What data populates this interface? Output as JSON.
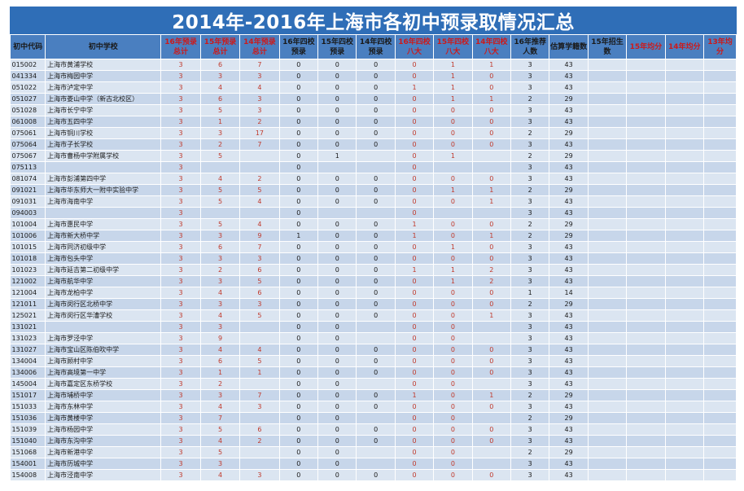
{
  "title": "2014年-2016年上海市各初中预录取情况汇总",
  "headers": [
    {
      "text": "初中代码",
      "red": false
    },
    {
      "text": "初中学校",
      "red": false
    },
    {
      "text": "16年预录总计",
      "red": true
    },
    {
      "text": "15年预录总计",
      "red": true
    },
    {
      "text": "14年预录总计",
      "red": true
    },
    {
      "text": "16年四校预录",
      "red": false
    },
    {
      "text": "15年四校预录",
      "red": false
    },
    {
      "text": "14年四校预录",
      "red": false
    },
    {
      "text": "16年四校八大",
      "red": true
    },
    {
      "text": "15年四校八大",
      "red": true
    },
    {
      "text": "14年四校八大",
      "red": true
    },
    {
      "text": "16年推荐人数",
      "red": false
    },
    {
      "text": "估算学籍数",
      "red": false
    },
    {
      "text": "15年招生数",
      "red": false
    },
    {
      "text": "15年均分",
      "red": true
    },
    {
      "text": "14年均分",
      "red": true
    },
    {
      "text": "13年均分",
      "red": true
    }
  ],
  "rows": [
    [
      "015002",
      "上海市黄浦学校",
      "3",
      "6",
      "7",
      "0",
      "0",
      "0",
      "0",
      "1",
      "1",
      "3",
      "43",
      "",
      "",
      "",
      ""
    ],
    [
      "041334",
      "上海市梅园中学",
      "3",
      "3",
      "3",
      "0",
      "0",
      "0",
      "0",
      "1",
      "0",
      "3",
      "43",
      "",
      "",
      "",
      ""
    ],
    [
      "051022",
      "上海市泸定中学",
      "3",
      "4",
      "4",
      "0",
      "0",
      "0",
      "1",
      "1",
      "0",
      "3",
      "43",
      "",
      "",
      "",
      ""
    ],
    [
      "051027",
      "上海市娄山中学（新古北校区）",
      "3",
      "6",
      "3",
      "0",
      "0",
      "0",
      "0",
      "1",
      "1",
      "2",
      "29",
      "",
      "",
      "",
      ""
    ],
    [
      "051028",
      "上海市长宁中学",
      "3",
      "5",
      "3",
      "0",
      "0",
      "0",
      "0",
      "0",
      "0",
      "3",
      "43",
      "",
      "",
      "",
      ""
    ],
    [
      "061008",
      "上海市五四中学",
      "3",
      "1",
      "2",
      "0",
      "0",
      "0",
      "0",
      "0",
      "0",
      "3",
      "43",
      "",
      "",
      "",
      ""
    ],
    [
      "075061",
      "上海市铜川学校",
      "3",
      "3",
      "17",
      "0",
      "0",
      "0",
      "0",
      "0",
      "0",
      "2",
      "29",
      "",
      "",
      "",
      ""
    ],
    [
      "075064",
      "上海市子长学校",
      "3",
      "2",
      "7",
      "0",
      "0",
      "0",
      "0",
      "0",
      "0",
      "3",
      "43",
      "",
      "",
      "",
      ""
    ],
    [
      "075067",
      "上海市曹杨中学附属学校",
      "3",
      "5",
      "",
      "0",
      "1",
      "",
      "0",
      "1",
      "",
      "2",
      "29",
      "",
      "",
      "",
      ""
    ],
    [
      "075113",
      "",
      "3",
      "",
      "",
      "0",
      "",
      "",
      "0",
      "",
      "",
      "3",
      "43",
      "",
      "",
      "",
      ""
    ],
    [
      "081074",
      "上海市彭浦第四中学",
      "3",
      "4",
      "2",
      "0",
      "0",
      "0",
      "0",
      "0",
      "0",
      "3",
      "43",
      "",
      "",
      "",
      ""
    ],
    [
      "091021",
      "上海市华东师大一附中实验中学",
      "3",
      "5",
      "5",
      "0",
      "0",
      "0",
      "0",
      "1",
      "1",
      "2",
      "29",
      "",
      "",
      "",
      ""
    ],
    [
      "091031",
      "上海市海南中学",
      "3",
      "5",
      "4",
      "0",
      "0",
      "0",
      "0",
      "0",
      "1",
      "3",
      "43",
      "",
      "",
      "",
      ""
    ],
    [
      "094003",
      "",
      "3",
      "",
      "",
      "0",
      "",
      "",
      "0",
      "",
      "",
      "3",
      "43",
      "",
      "",
      "",
      ""
    ],
    [
      "101004",
      "上海市惠民中学",
      "3",
      "5",
      "4",
      "0",
      "0",
      "0",
      "1",
      "0",
      "0",
      "2",
      "29",
      "",
      "",
      "",
      ""
    ],
    [
      "101006",
      "上海市新大桥中学",
      "3",
      "3",
      "9",
      "1",
      "0",
      "0",
      "1",
      "0",
      "1",
      "2",
      "29",
      "",
      "",
      "",
      ""
    ],
    [
      "101015",
      "上海市同济初级中学",
      "3",
      "6",
      "7",
      "0",
      "0",
      "0",
      "0",
      "1",
      "0",
      "3",
      "43",
      "",
      "",
      "",
      ""
    ],
    [
      "101018",
      "上海市包头中学",
      "3",
      "3",
      "3",
      "0",
      "0",
      "0",
      "0",
      "0",
      "0",
      "3",
      "43",
      "",
      "",
      "",
      ""
    ],
    [
      "101023",
      "上海市延吉第二初级中学",
      "3",
      "2",
      "6",
      "0",
      "0",
      "0",
      "1",
      "1",
      "2",
      "3",
      "43",
      "",
      "",
      "",
      ""
    ],
    [
      "121002",
      "上海市航华中学",
      "3",
      "3",
      "5",
      "0",
      "0",
      "0",
      "0",
      "1",
      "2",
      "3",
      "43",
      "",
      "",
      "",
      ""
    ],
    [
      "121004",
      "上海市龙柏中学",
      "3",
      "4",
      "6",
      "0",
      "0",
      "0",
      "0",
      "0",
      "0",
      "1",
      "14",
      "",
      "",
      "",
      ""
    ],
    [
      "121011",
      "上海市闵行区北桥中学",
      "3",
      "3",
      "3",
      "0",
      "0",
      "0",
      "0",
      "0",
      "0",
      "2",
      "29",
      "",
      "",
      "",
      ""
    ],
    [
      "125021",
      "上海市闵行区华漕学校",
      "3",
      "4",
      "5",
      "0",
      "0",
      "0",
      "0",
      "0",
      "1",
      "3",
      "43",
      "",
      "",
      "",
      ""
    ],
    [
      "131021",
      "",
      "3",
      "3",
      "",
      "0",
      "0",
      "",
      "0",
      "0",
      "",
      "3",
      "43",
      "",
      "",
      "",
      ""
    ],
    [
      "131023",
      "上海市罗泾中学",
      "3",
      "9",
      "",
      "0",
      "0",
      "",
      "0",
      "0",
      "",
      "3",
      "43",
      "",
      "",
      "",
      ""
    ],
    [
      "131027",
      "上海市宝山区陈伯吹中学",
      "3",
      "4",
      "4",
      "0",
      "0",
      "0",
      "0",
      "0",
      "0",
      "3",
      "43",
      "",
      "",
      "",
      ""
    ],
    [
      "134004",
      "上海市顾村中学",
      "3",
      "6",
      "5",
      "0",
      "0",
      "0",
      "0",
      "0",
      "0",
      "3",
      "43",
      "",
      "",
      "",
      ""
    ],
    [
      "134006",
      "上海市高境第一中学",
      "3",
      "1",
      "1",
      "0",
      "0",
      "0",
      "0",
      "0",
      "0",
      "3",
      "43",
      "",
      "",
      "",
      ""
    ],
    [
      "145004",
      "上海市嘉定区东桥学校",
      "3",
      "2",
      "",
      "0",
      "0",
      "",
      "0",
      "0",
      "",
      "3",
      "43",
      "",
      "",
      "",
      ""
    ],
    [
      "151017",
      "上海市埔桥中学",
      "3",
      "3",
      "7",
      "0",
      "0",
      "0",
      "1",
      "0",
      "1",
      "2",
      "29",
      "",
      "",
      "",
      ""
    ],
    [
      "151033",
      "上海市东林中学",
      "3",
      "4",
      "3",
      "0",
      "0",
      "0",
      "0",
      "0",
      "0",
      "3",
      "43",
      "",
      "",
      "",
      ""
    ],
    [
      "151036",
      "上海市黄楼中学",
      "3",
      "7",
      "",
      "0",
      "0",
      "",
      "0",
      "0",
      "",
      "2",
      "29",
      "",
      "",
      "",
      ""
    ],
    [
      "151039",
      "上海市杨园中学",
      "3",
      "5",
      "6",
      "0",
      "0",
      "0",
      "0",
      "0",
      "0",
      "3",
      "43",
      "",
      "",
      "",
      ""
    ],
    [
      "151040",
      "上海市东沟中学",
      "3",
      "4",
      "2",
      "0",
      "0",
      "0",
      "0",
      "0",
      "0",
      "3",
      "43",
      "",
      "",
      "",
      ""
    ],
    [
      "151068",
      "上海市新港中学",
      "3",
      "5",
      "",
      "0",
      "0",
      "",
      "0",
      "0",
      "",
      "2",
      "29",
      "",
      "",
      "",
      ""
    ],
    [
      "154001",
      "上海市历城中学",
      "3",
      "3",
      "",
      "0",
      "0",
      "",
      "0",
      "0",
      "",
      "3",
      "43",
      "",
      "",
      "",
      ""
    ],
    [
      "154008",
      "上海市泾南中学",
      "3",
      "4",
      "3",
      "0",
      "0",
      "0",
      "0",
      "0",
      "0",
      "3",
      "43",
      "",
      "",
      "",
      ""
    ]
  ],
  "colors": {
    "banner": "#2f6eb7",
    "header_bg": "#4a7fc0",
    "row_light": "#dbe5f1",
    "row_dark": "#c7d6ea",
    "red_text": "#c0392b"
  }
}
